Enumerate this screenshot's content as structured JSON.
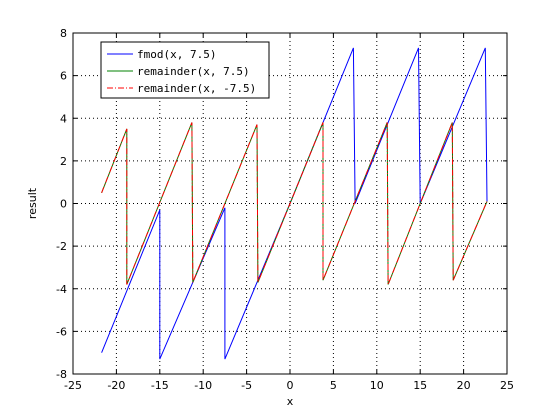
{
  "chart_data": {
    "type": "line",
    "title": "",
    "xlabel": "x",
    "ylabel": "result",
    "xlim": [
      -25,
      25
    ],
    "ylim": [
      -8,
      8
    ],
    "x_ticks": [
      -25,
      -20,
      -15,
      -10,
      -5,
      0,
      5,
      10,
      15,
      20,
      25
    ],
    "y_ticks": [
      -8,
      -6,
      -4,
      -2,
      0,
      2,
      4,
      6,
      8
    ],
    "grid": true,
    "legend_position": "top-left",
    "series": [
      {
        "name": "fmod(x, 7.5)",
        "color": "#0000ff",
        "dash": "solid",
        "points": [
          [
            -21.7,
            -7.0
          ],
          [
            -15.0,
            -0.3
          ],
          [
            -15.0,
            -7.3
          ],
          [
            -7.5,
            -0.2
          ],
          [
            -7.5,
            -7.3
          ],
          [
            0.0,
            0.0
          ],
          [
            7.3,
            7.3
          ],
          [
            7.5,
            0.0
          ],
          [
            14.8,
            7.3
          ],
          [
            15.0,
            0.0
          ],
          [
            22.5,
            7.3
          ],
          [
            22.7,
            0.1
          ]
        ]
      },
      {
        "name": "remainder(x, 7.5)",
        "color": "#008000",
        "dash": "solid",
        "points": [
          [
            -21.7,
            0.5
          ],
          [
            -18.8,
            3.5
          ],
          [
            -18.8,
            -3.8
          ],
          [
            -11.3,
            3.8
          ],
          [
            -11.2,
            -3.7
          ],
          [
            -3.8,
            3.7
          ],
          [
            -3.7,
            -3.7
          ],
          [
            3.8,
            3.8
          ],
          [
            3.8,
            -3.6
          ],
          [
            11.2,
            3.8
          ],
          [
            11.3,
            -3.8
          ],
          [
            18.7,
            3.8
          ],
          [
            18.8,
            -3.6
          ],
          [
            22.7,
            0.1
          ]
        ]
      },
      {
        "name": "remainder(x, -7.5)",
        "color": "#ff0000",
        "dash": "dashdot",
        "points": [
          [
            -21.7,
            0.5
          ],
          [
            -18.8,
            3.5
          ],
          [
            -18.8,
            -3.8
          ],
          [
            -11.3,
            3.8
          ],
          [
            -11.2,
            -3.7
          ],
          [
            -3.8,
            3.7
          ],
          [
            -3.7,
            -3.7
          ],
          [
            3.8,
            3.8
          ],
          [
            3.8,
            -3.6
          ],
          [
            11.2,
            3.8
          ],
          [
            11.3,
            -3.8
          ],
          [
            18.7,
            3.8
          ],
          [
            18.8,
            -3.6
          ],
          [
            22.7,
            0.1
          ]
        ]
      }
    ]
  }
}
